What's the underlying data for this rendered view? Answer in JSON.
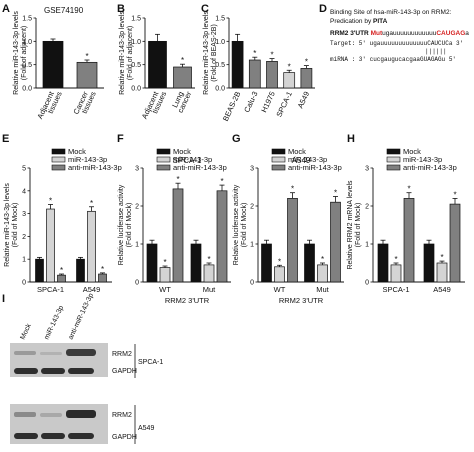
{
  "colors": {
    "black": "#111111",
    "white": "#ffffff",
    "light": "#d4d4d4",
    "dark": "#808080",
    "red": "#d52020"
  },
  "chart_data": [
    {
      "id": "A",
      "type": "bar",
      "title": "GSE74190",
      "xlabel": "",
      "ylabel": "Relative miR-143-3p levels (Fold of adjacent)",
      "categories": [
        "Adjacent tissues",
        "Cancer tissues"
      ],
      "values": [
        1.0,
        0.55
      ],
      "errors": [
        0.05,
        0.05
      ],
      "fills": [
        "black",
        "dark"
      ],
      "sig": [
        "",
        "*"
      ],
      "ylim": [
        0,
        1.5
      ],
      "yticks": [
        "0.0",
        "0.5",
        "1.0",
        "1.5"
      ]
    },
    {
      "id": "B",
      "type": "bar",
      "title": "",
      "xlabel": "",
      "ylabel": "Relative miR-143-3p levels (Fold of adjacent)",
      "categories": [
        "Adjacent tissues",
        "Lung cancer"
      ],
      "values": [
        1.0,
        0.45
      ],
      "errors": [
        0.15,
        0.06
      ],
      "fills": [
        "black",
        "dark"
      ],
      "sig": [
        "",
        "*"
      ],
      "ylim": [
        0,
        1.5
      ],
      "yticks": [
        "0.0",
        "0.5",
        "1.0",
        "1.5"
      ]
    },
    {
      "id": "C",
      "type": "bar",
      "title": "",
      "xlabel": "",
      "ylabel": "Relative miR-143-3p levels (Fold of BEAS-2B)",
      "categories": [
        "BEAS-2B",
        "Calu-3",
        "H1975",
        "SPCA-1",
        "A549"
      ],
      "values": [
        1.0,
        0.6,
        0.57,
        0.33,
        0.42
      ],
      "errors": [
        0.15,
        0.06,
        0.06,
        0.05,
        0.06
      ],
      "fills": [
        "black",
        "dark",
        "dark",
        "light",
        "dark"
      ],
      "sig": [
        "",
        "*",
        "*",
        "*",
        "*"
      ],
      "ylim": [
        0,
        1.5
      ],
      "yticks": [
        "0.0",
        "0.5",
        "1.0",
        "1.5"
      ]
    },
    {
      "id": "E",
      "type": "bar",
      "title": "",
      "xlabel": "",
      "ylabel": "Relative miR-143-3p levels (Fold of Mock)",
      "categories": [
        "SPCA-1",
        "A549"
      ],
      "series": [
        {
          "name": "Mock",
          "values": [
            1.0,
            1.0
          ],
          "errors": [
            0.08,
            0.08
          ],
          "fill": "black"
        },
        {
          "name": "miR-143-3p",
          "values": [
            3.2,
            3.1
          ],
          "errors": [
            0.2,
            0.2
          ],
          "fill": "light"
        },
        {
          "name": "anti-miR-143-3p",
          "values": [
            0.3,
            0.35
          ],
          "errors": [
            0.05,
            0.05
          ],
          "fill": "dark"
        }
      ],
      "sig": [
        [
          "",
          "*",
          "*"
        ],
        [
          "",
          "*",
          "*"
        ]
      ],
      "ylim": [
        0,
        5
      ],
      "yticks": [
        "0",
        "1",
        "2",
        "3",
        "4",
        "5"
      ]
    },
    {
      "id": "F",
      "type": "bar",
      "title": "SPCA-1",
      "xlabel": "RRM2 3'UTR",
      "ylabel": "Relative luciferase activity (Fold of Mock)",
      "categories": [
        "WT",
        "Mut"
      ],
      "series": [
        {
          "name": "Mock",
          "values": [
            1.0,
            1.0
          ],
          "errors": [
            0.1,
            0.1
          ],
          "fill": "black"
        },
        {
          "name": "miR-143-3p",
          "values": [
            0.38,
            0.45
          ],
          "errors": [
            0.04,
            0.05
          ],
          "fill": "light"
        },
        {
          "name": "anti-miR-143-3p",
          "values": [
            2.45,
            2.4
          ],
          "errors": [
            0.15,
            0.15
          ],
          "fill": "dark"
        }
      ],
      "sig": [
        [
          "",
          "*",
          "*"
        ],
        [
          "",
          "*",
          "*"
        ]
      ],
      "ylim": [
        0,
        3
      ],
      "yticks": [
        "0",
        "1",
        "2",
        "3"
      ]
    },
    {
      "id": "G",
      "type": "bar",
      "title": "A549",
      "xlabel": "RRM2 3'UTR",
      "ylabel": "Relative luciferase activity (Fold of Mock)",
      "categories": [
        "WT",
        "Mut"
      ],
      "series": [
        {
          "name": "Mock",
          "values": [
            1.0,
            1.0
          ],
          "errors": [
            0.1,
            0.1
          ],
          "fill": "black"
        },
        {
          "name": "miR-143-3p",
          "values": [
            0.4,
            0.45
          ],
          "errors": [
            0.04,
            0.05
          ],
          "fill": "light"
        },
        {
          "name": "anti-miR-143-3p",
          "values": [
            2.2,
            2.1
          ],
          "errors": [
            0.15,
            0.15
          ],
          "fill": "dark"
        }
      ],
      "sig": [
        [
          "",
          "*",
          "*"
        ],
        [
          "",
          "*",
          "*"
        ]
      ],
      "ylim": [
        0,
        3
      ],
      "yticks": [
        "0",
        "1",
        "2",
        "3"
      ]
    },
    {
      "id": "H",
      "type": "bar",
      "title": "",
      "xlabel": "",
      "ylabel": "Relative RRM2 mRNA levels (Fold of Mock)",
      "categories": [
        "SPCA-1",
        "A549"
      ],
      "series": [
        {
          "name": "Mock",
          "values": [
            1.0,
            1.0
          ],
          "errors": [
            0.1,
            0.1
          ],
          "fill": "black"
        },
        {
          "name": "miR-143-3p",
          "values": [
            0.45,
            0.5
          ],
          "errors": [
            0.05,
            0.05
          ],
          "fill": "light"
        },
        {
          "name": "anti-miR-143-3p",
          "values": [
            2.2,
            2.05
          ],
          "errors": [
            0.15,
            0.15
          ],
          "fill": "dark"
        }
      ],
      "sig": [
        [
          "",
          "*",
          "*"
        ],
        [
          "",
          "*",
          "*"
        ]
      ],
      "ylim": [
        0,
        3
      ],
      "yticks": [
        "0",
        "1",
        "2",
        "3"
      ]
    }
  ],
  "panel_letters": [
    "A",
    "B",
    "C",
    "D",
    "E",
    "F",
    "G",
    "H",
    "I"
  ],
  "legend": [
    "Mock",
    "miR-143-3p",
    "anti-miR-143-3p"
  ],
  "binding": {
    "title1": "Binding Site of hsa-miR-143-3p on RRM2:",
    "title2": "Predication by PITA",
    "utr_label": "RRM2 3'UTR",
    "utr_mut": "Mut",
    "utr_mid": "ugauuuuuuuuuuuu",
    "utr_red": "CAUGAG",
    "utr_end": "a",
    "target_line": "Target:  5' ugauuuuuuuuuuuuuCAUCUCa 3'",
    "pairs": "||||||",
    "mirna_line": "miRNA :  3' cucgaugucacgaaGUAGAGu 5'"
  },
  "blot": {
    "lanes": [
      "Mock",
      "miR-143-3p",
      "anti-miR-143-3p"
    ],
    "bands": [
      "RRM2",
      "GAPDH"
    ],
    "cells": [
      "SPCA-1",
      "A549"
    ]
  }
}
